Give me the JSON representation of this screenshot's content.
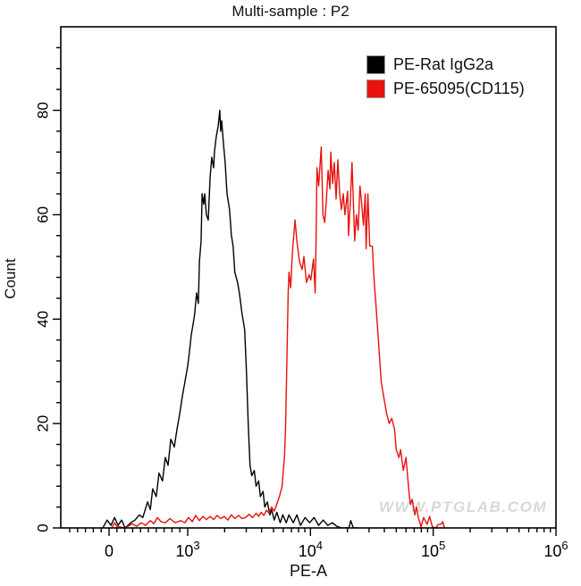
{
  "title": "Multi-sample : P2",
  "watermark": "WWW.PTGLAB.COM",
  "colors": {
    "axis": "#000000",
    "black_series": "#000000",
    "red_series": "#e8110c",
    "watermark": "#d8d8d8",
    "swatch_border": "#999999"
  },
  "legend": {
    "items": [
      {
        "label": "PE-Rat IgG2a",
        "color": "#000000"
      },
      {
        "label": "PE-65095(CD115)",
        "color": "#e8110c"
      }
    ]
  },
  "chart_data": {
    "type": "line",
    "subtype": "flow-cytometry-histogram-overlay",
    "title": "Multi-sample : P2",
    "xlabel": "PE-A",
    "ylabel": "Count",
    "x_scale": "biexponential (linear below 10^3, logarithmic above)",
    "x_major_ticks": [
      {
        "value": 0,
        "label": "0"
      },
      {
        "value": 1000,
        "label": "10",
        "exponent": "3"
      },
      {
        "value": 10000,
        "label": "10",
        "exponent": "4"
      },
      {
        "value": 100000,
        "label": "10",
        "exponent": "5"
      },
      {
        "value": 1000000,
        "label": "10",
        "exponent": "6"
      }
    ],
    "x_minor_linear": {
      "from": -500,
      "to": 900,
      "step": 100
    },
    "x_minor_log_decades": [
      1000,
      10000,
      100000
    ],
    "ylim": [
      0,
      96
    ],
    "y_major_ticks": [
      0,
      20,
      40,
      60,
      80
    ],
    "y_minor_step": 4,
    "grid": false,
    "legend_position": "top-right",
    "series": [
      {
        "name": "PE-Rat IgG2a",
        "color": "#000000",
        "peak": {
          "x": 1800,
          "count": 80
        },
        "points": [
          [
            -80,
            0
          ],
          [
            -25,
            1.5
          ],
          [
            25,
            0.5
          ],
          [
            70,
            2
          ],
          [
            115,
            0.5
          ],
          [
            160,
            1.5
          ],
          [
            205,
            0
          ],
          [
            275,
            1
          ],
          [
            330,
            1.5
          ],
          [
            385,
            2.5
          ],
          [
            430,
            2
          ],
          [
            490,
            5
          ],
          [
            525,
            3.5
          ],
          [
            555,
            7.5
          ],
          [
            600,
            6
          ],
          [
            635,
            10.5
          ],
          [
            680,
            9
          ],
          [
            715,
            13.5
          ],
          [
            750,
            12
          ],
          [
            785,
            17
          ],
          [
            830,
            15.5
          ],
          [
            865,
            19
          ],
          [
            900,
            22
          ],
          [
            930,
            25
          ],
          [
            965,
            28
          ],
          [
            1000,
            31
          ],
          [
            1035,
            34
          ],
          [
            1070,
            37
          ],
          [
            1105,
            39
          ],
          [
            1140,
            41
          ],
          [
            1180,
            45
          ],
          [
            1220,
            43
          ],
          [
            1245,
            51
          ],
          [
            1285,
            55
          ],
          [
            1310,
            64
          ],
          [
            1350,
            62
          ],
          [
            1375,
            64
          ],
          [
            1420,
            60
          ],
          [
            1470,
            59
          ],
          [
            1520,
            67
          ],
          [
            1570,
            71
          ],
          [
            1625,
            69
          ],
          [
            1650,
            72
          ],
          [
            1710,
            75
          ],
          [
            1770,
            77
          ],
          [
            1825,
            80
          ],
          [
            1855,
            76
          ],
          [
            1890,
            78
          ],
          [
            1950,
            74
          ],
          [
            2020,
            70
          ],
          [
            2090,
            64
          ],
          [
            2190,
            61
          ],
          [
            2270,
            56
          ],
          [
            2345,
            54
          ],
          [
            2420,
            49
          ],
          [
            2550,
            47
          ],
          [
            2635,
            45
          ],
          [
            2770,
            41
          ],
          [
            2910,
            38
          ],
          [
            3010,
            30
          ],
          [
            3110,
            20
          ],
          [
            3215,
            12
          ],
          [
            3325,
            10
          ],
          [
            3490,
            11
          ],
          [
            3605,
            8
          ],
          [
            3785,
            9
          ],
          [
            3910,
            6
          ],
          [
            4110,
            7
          ],
          [
            4245,
            4
          ],
          [
            4455,
            5
          ],
          [
            4680,
            2.5
          ],
          [
            4830,
            3.5
          ],
          [
            5070,
            1.5
          ],
          [
            5325,
            3
          ],
          [
            5675,
            1
          ],
          [
            5955,
            2.5
          ],
          [
            6355,
            1
          ],
          [
            6675,
            2.5
          ],
          [
            7240,
            1
          ],
          [
            7750,
            2.5
          ],
          [
            8295,
            0.5
          ],
          [
            9035,
            2
          ],
          [
            9840,
            1
          ],
          [
            10710,
            2
          ],
          [
            11665,
            0.5
          ],
          [
            12700,
            1.5
          ],
          [
            13830,
            0.5
          ],
          [
            15060,
            1
          ],
          [
            16400,
            0.3
          ],
          [
            17860,
            0
          ],
          [
            20600,
            0
          ],
          [
            21300,
            1.4
          ],
          [
            22350,
            0
          ],
          [
            24000,
            0
          ]
        ]
      },
      {
        "name": "PE-65095(CD115)",
        "color": "#e8110c",
        "peak": {
          "x": 15000,
          "count": 73
        },
        "points": [
          [
            34,
            0
          ],
          [
            70,
            1
          ],
          [
            100,
            0.3
          ],
          [
            205,
            0
          ],
          [
            295,
            0.8
          ],
          [
            350,
            0.3
          ],
          [
            410,
            1
          ],
          [
            465,
            0.5
          ],
          [
            525,
            1.4
          ],
          [
            570,
            0.8
          ],
          [
            615,
            2
          ],
          [
            660,
            1.2
          ],
          [
            715,
            1
          ],
          [
            775,
            1.8
          ],
          [
            840,
            1
          ],
          [
            910,
            1.4
          ],
          [
            965,
            1
          ],
          [
            1015,
            2
          ],
          [
            1090,
            1.2
          ],
          [
            1160,
            2.4
          ],
          [
            1245,
            1.4
          ],
          [
            1330,
            2.2
          ],
          [
            1420,
            1.6
          ],
          [
            1520,
            2.2
          ],
          [
            1625,
            1.6
          ],
          [
            1735,
            2.4
          ],
          [
            1855,
            1.8
          ],
          [
            1985,
            2.2
          ],
          [
            2120,
            1.5
          ],
          [
            2265,
            2.5
          ],
          [
            2425,
            1.8
          ],
          [
            2590,
            2.4
          ],
          [
            2765,
            1.8
          ],
          [
            2960,
            2
          ],
          [
            3160,
            2.6
          ],
          [
            3380,
            2
          ],
          [
            3605,
            2.8
          ],
          [
            3785,
            2.2
          ],
          [
            3970,
            3
          ],
          [
            4175,
            2.4
          ],
          [
            4380,
            3.4
          ],
          [
            4600,
            2.8
          ],
          [
            4830,
            4
          ],
          [
            5070,
            3.2
          ],
          [
            5325,
            4.6
          ],
          [
            5590,
            6
          ],
          [
            5870,
            8
          ],
          [
            5965,
            10
          ],
          [
            6160,
            14
          ],
          [
            6265,
            19
          ],
          [
            6365,
            27
          ],
          [
            6470,
            36
          ],
          [
            6580,
            45
          ],
          [
            6685,
            49
          ],
          [
            6905,
            46
          ],
          [
            7135,
            53
          ],
          [
            7495,
            59
          ],
          [
            7750,
            55
          ],
          [
            8140,
            51
          ],
          [
            8550,
            49.5
          ],
          [
            8840,
            52
          ],
          [
            9280,
            47
          ],
          [
            9750,
            48.5
          ],
          [
            10070,
            47.5
          ],
          [
            10575,
            51.5
          ],
          [
            10925,
            45
          ],
          [
            11105,
            55
          ],
          [
            11290,
            69
          ],
          [
            11660,
            65.5
          ],
          [
            12240,
            73
          ],
          [
            12640,
            60
          ],
          [
            13050,
            58.5
          ],
          [
            13490,
            63
          ],
          [
            13930,
            68.5
          ],
          [
            14400,
            65
          ],
          [
            14640,
            72
          ],
          [
            15140,
            66
          ],
          [
            15650,
            70
          ],
          [
            16180,
            63
          ],
          [
            16720,
            70.5
          ],
          [
            17290,
            64
          ],
          [
            17870,
            61
          ],
          [
            18480,
            64
          ],
          [
            19100,
            60
          ],
          [
            20080,
            64.5
          ],
          [
            20410,
            56
          ],
          [
            21090,
            62
          ],
          [
            21800,
            70
          ],
          [
            22900,
            55
          ],
          [
            23680,
            60
          ],
          [
            24470,
            57
          ],
          [
            25300,
            65.5
          ],
          [
            26150,
            62
          ],
          [
            27030,
            58
          ],
          [
            27950,
            64
          ],
          [
            28420,
            53.5
          ],
          [
            29380,
            64
          ],
          [
            30370,
            54
          ],
          [
            31920,
            54
          ],
          [
            32990,
            47.5
          ],
          [
            34110,
            43
          ],
          [
            35280,
            38
          ],
          [
            36460,
            33
          ],
          [
            37690,
            28
          ],
          [
            39620,
            25
          ],
          [
            41640,
            22
          ],
          [
            43750,
            20
          ],
          [
            45980,
            21
          ],
          [
            48330,
            19
          ],
          [
            49970,
            15
          ],
          [
            52520,
            13.5
          ],
          [
            54290,
            15
          ],
          [
            57070,
            11
          ],
          [
            59970,
            13.5
          ],
          [
            62000,
            9.5
          ],
          [
            64100,
            6
          ],
          [
            65170,
            4.5
          ],
          [
            67370,
            5.5
          ],
          [
            69650,
            3.5
          ],
          [
            70810,
            2.5
          ],
          [
            73180,
            4
          ],
          [
            75640,
            2
          ],
          [
            79480,
            0.2
          ],
          [
            83510,
            2
          ],
          [
            89180,
            0.7
          ],
          [
            93630,
            2.2
          ],
          [
            98320,
            0.2
          ],
          [
            104900,
            0
          ],
          [
            110200,
            0.7
          ],
          [
            115700,
            0.7
          ],
          [
            119600,
            1.2
          ],
          [
            123600,
            0
          ]
        ]
      }
    ]
  }
}
